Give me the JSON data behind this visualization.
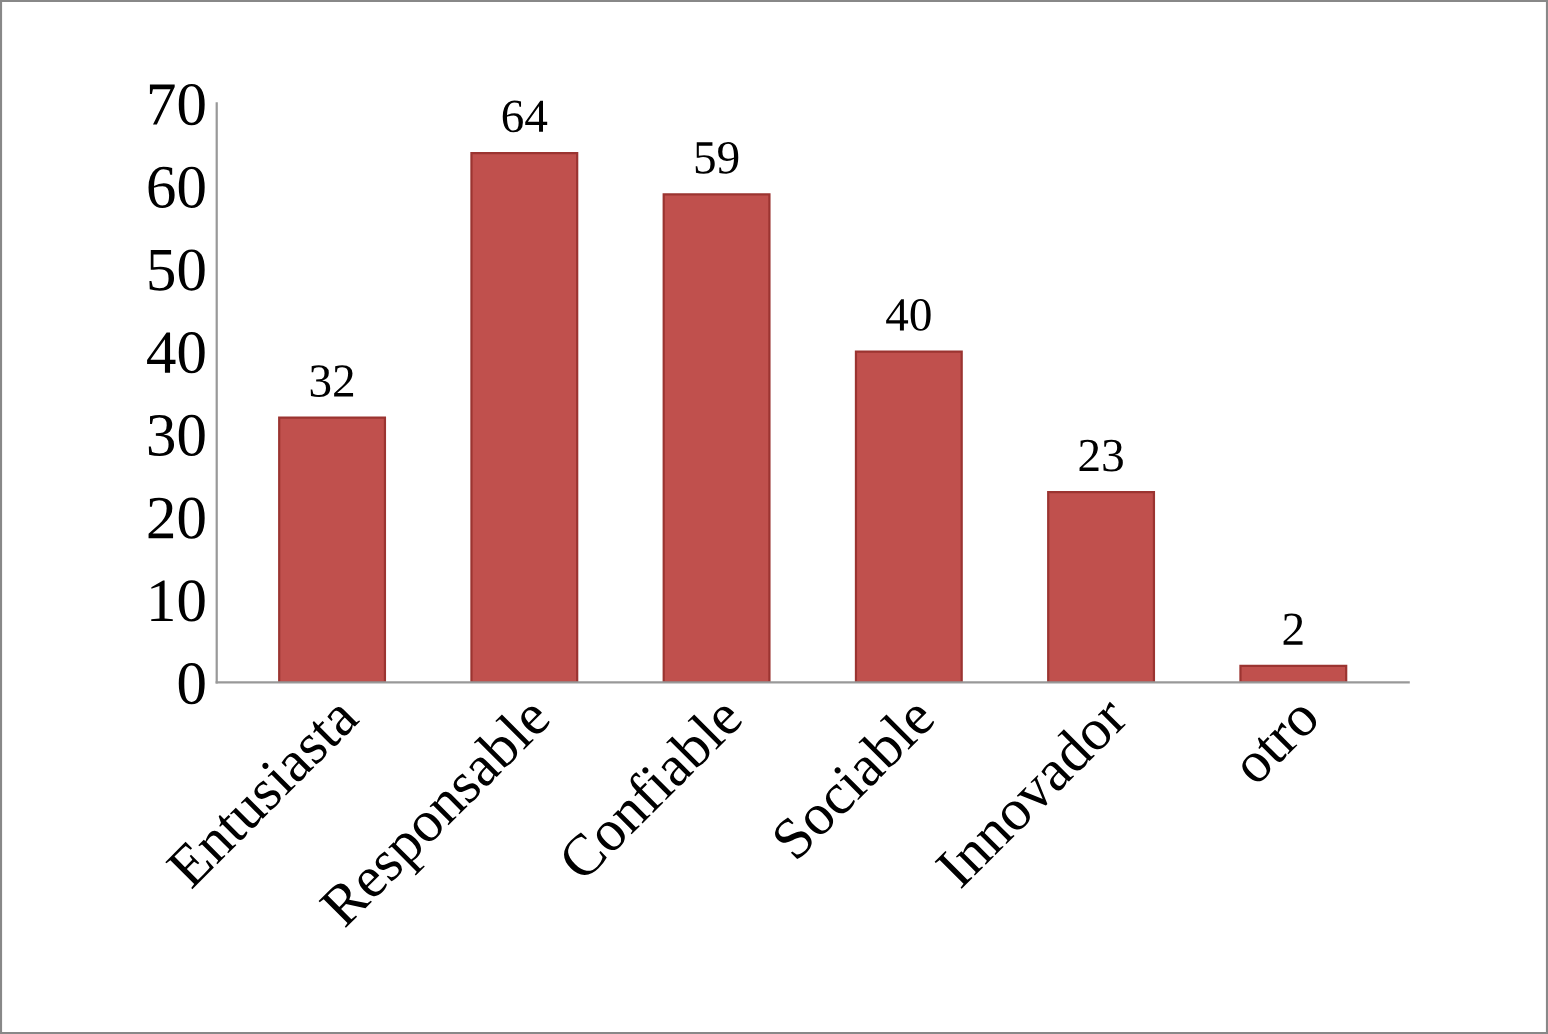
{
  "chart_data": {
    "type": "bar",
    "categories": [
      "Entusiasta",
      "Responsable",
      "Confiable",
      "Sociable",
      "Innovador",
      "otro"
    ],
    "values": [
      32,
      64,
      59,
      40,
      23,
      2
    ],
    "color": "#c0504d",
    "ylim": [
      0,
      70
    ],
    "yticks": [
      0,
      10,
      20,
      30,
      40,
      50,
      60,
      70
    ],
    "data_labels": true,
    "grid": false,
    "legend": false
  }
}
